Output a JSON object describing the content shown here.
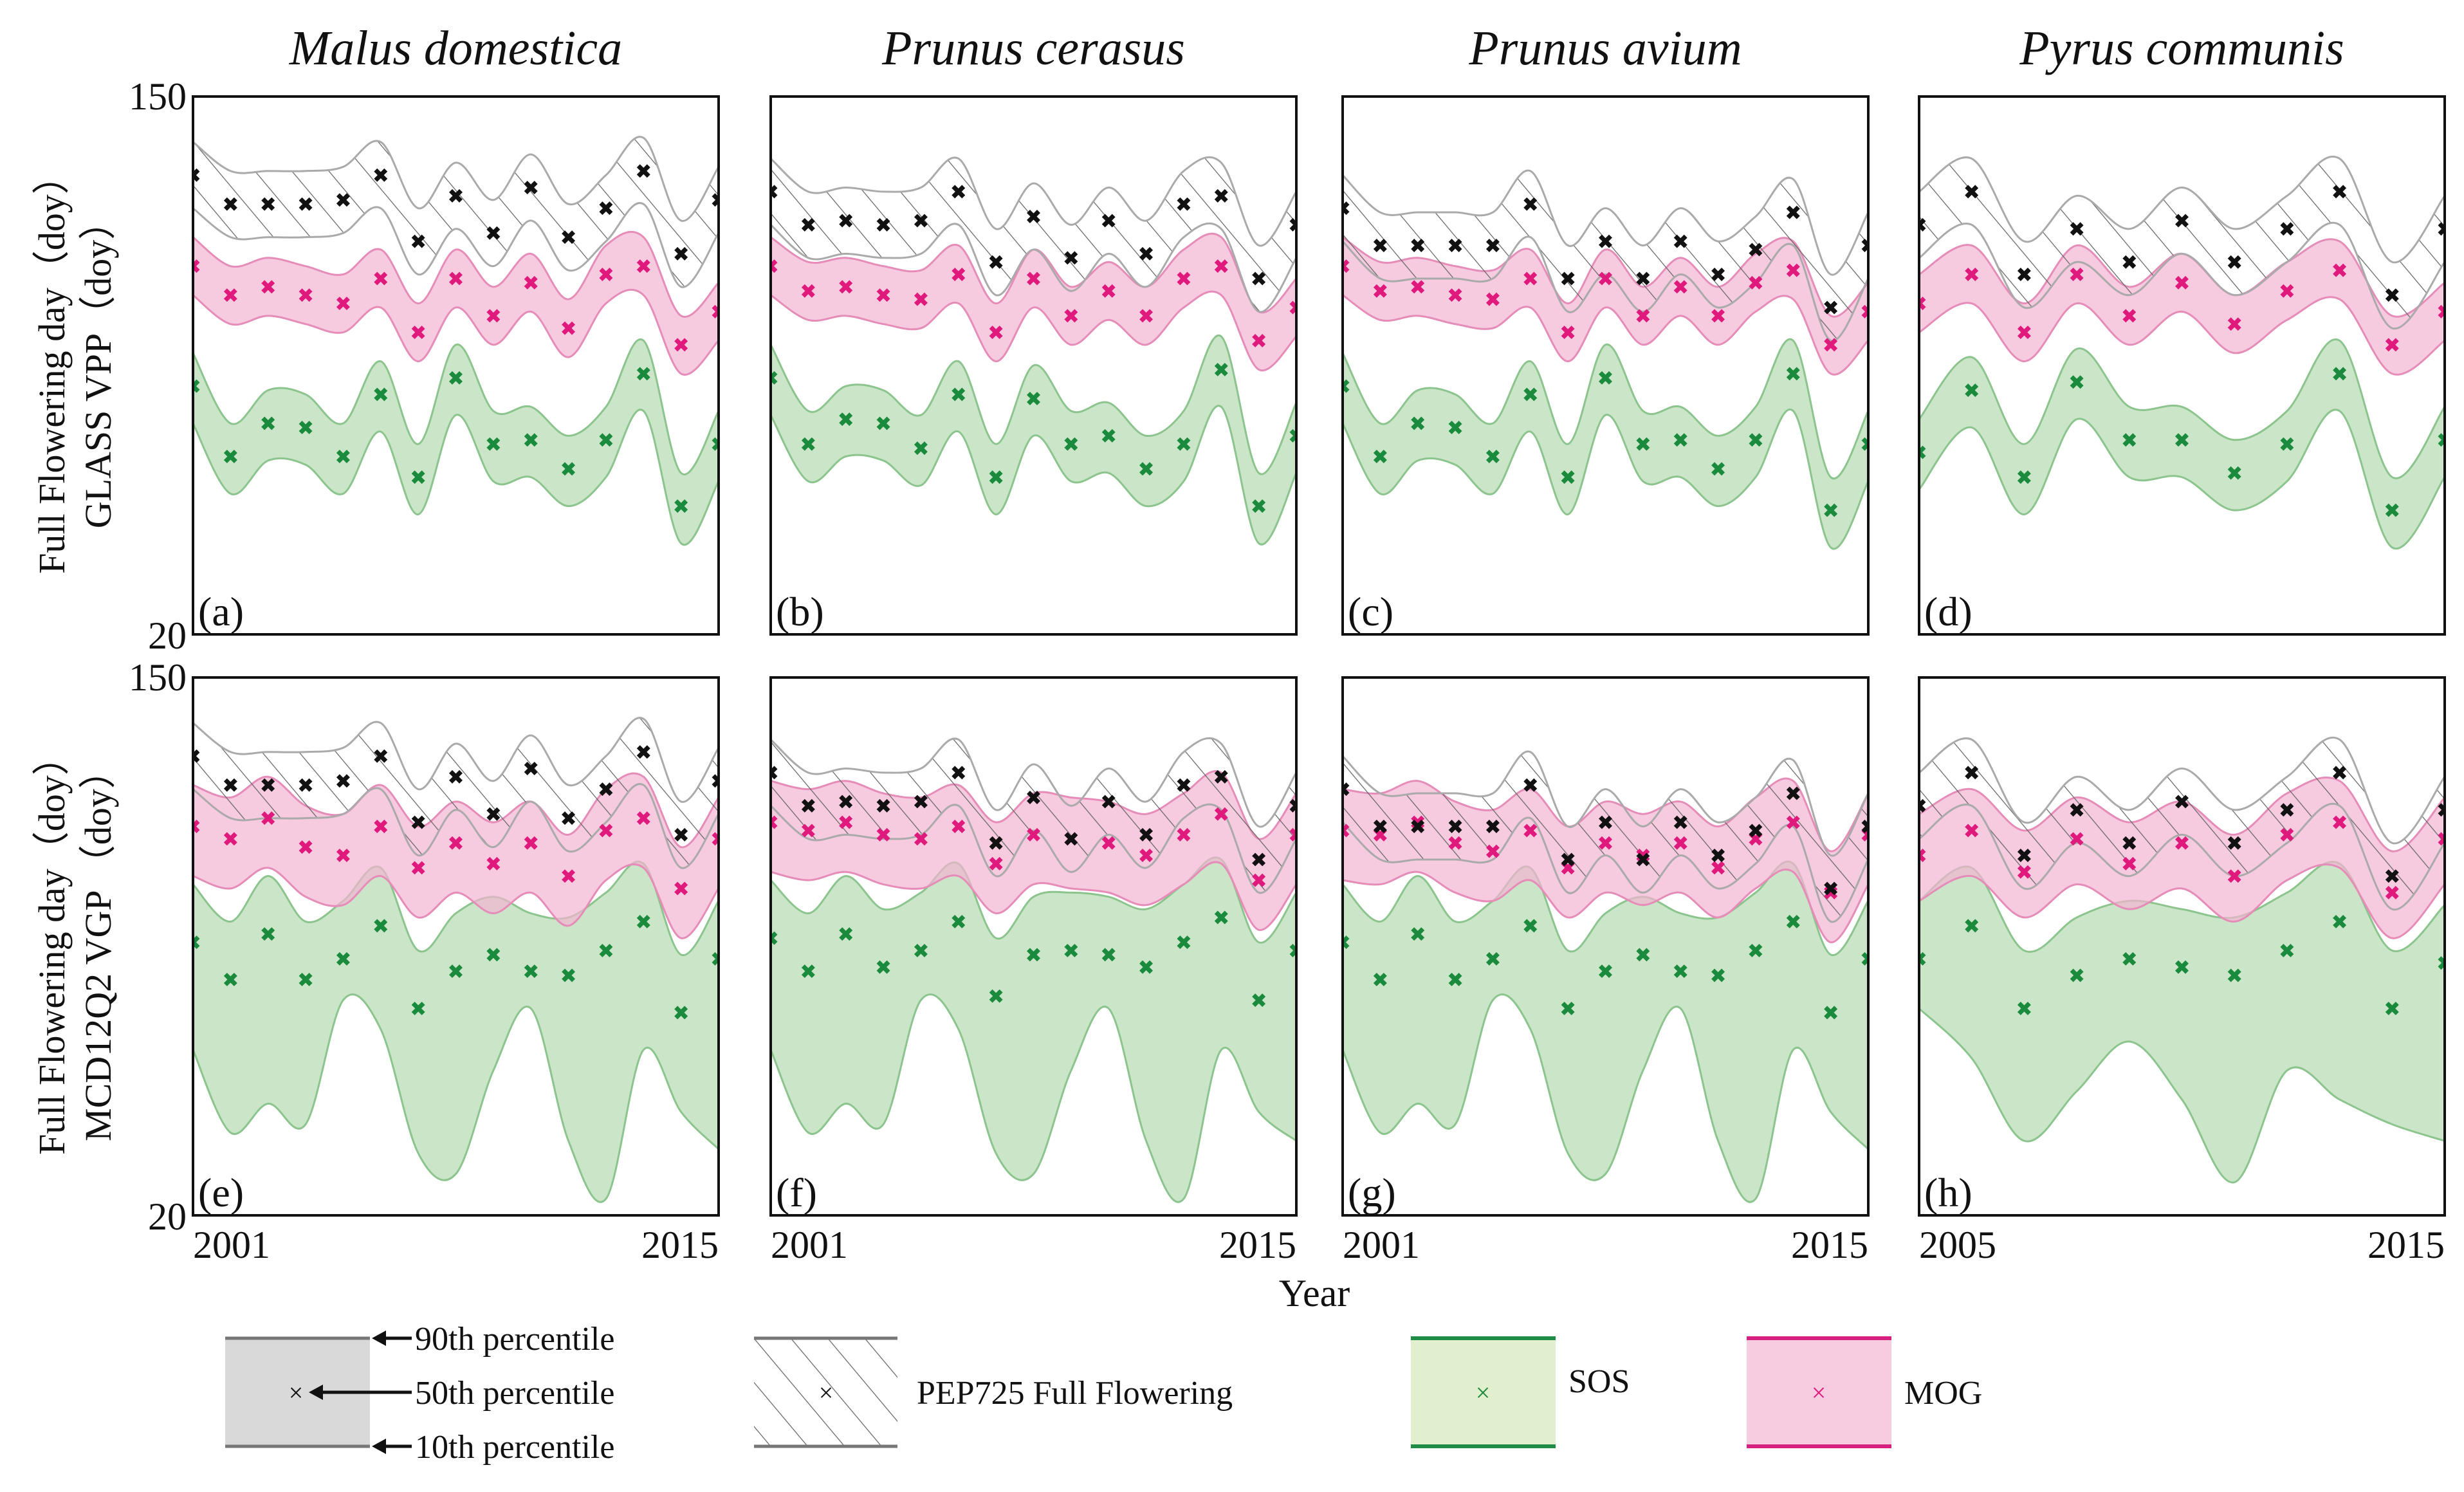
{
  "figure": {
    "column_titles": [
      "Malus domestica",
      "Prunus cerasus",
      "Prunus avium",
      "Pyrus communis"
    ],
    "row_labels": [
      [
        "Full Flowering day（doy）",
        "GLASS VPP（doy）"
      ],
      [
        "Full Flowering day（doy）",
        "MCD12Q2 VGP （doy）"
      ]
    ],
    "y_ticks": [
      "150",
      "20"
    ],
    "xlabel": "Year",
    "legend": {
      "p90": "90th percentile",
      "p50": "50th percentile",
      "p10": "10th percentile",
      "pep": "PEP725  Full Flowering",
      "sos": "SOS",
      "mog": "MOG",
      "marker": "×"
    },
    "colors": {
      "pep": "#111111",
      "mog": "#e0197d",
      "sos": "#1a8a3c",
      "mog_fill": "#f2b3d2",
      "sos_fill": "#b9dcb6"
    }
  },
  "chart_data": [
    {
      "type": "area",
      "panel": "(a)",
      "ylim": [
        20,
        150
      ],
      "x_start": 2001,
      "x_end": 2015,
      "x_ticks": [
        "2001",
        "2015"
      ],
      "series": [
        {
          "name": "PEP725 Full Flowering",
          "median": [
            131,
            124,
            124,
            124,
            125,
            131,
            115,
            126,
            117,
            128,
            116,
            123,
            132,
            112,
            125
          ],
          "spread": [
            8,
            8
          ]
        },
        {
          "name": "MOG",
          "median": [
            109,
            102,
            104,
            102,
            100,
            106,
            93,
            106,
            97,
            105,
            94,
            107,
            109,
            90,
            98
          ],
          "spread": [
            7,
            7
          ]
        },
        {
          "name": "SOS",
          "median": [
            80,
            63,
            71,
            70,
            63,
            78,
            58,
            82,
            66,
            67,
            60,
            67,
            83,
            51,
            66
          ],
          "spread": [
            9,
            8
          ]
        }
      ]
    },
    {
      "type": "area",
      "panel": "(b)",
      "ylim": [
        20,
        150
      ],
      "x_start": 2001,
      "x_end": 2015,
      "x_ticks": [
        "2001",
        "2015"
      ],
      "series": [
        {
          "name": "PEP725 Full Flowering",
          "median": [
            127,
            119,
            120,
            119,
            120,
            127,
            110,
            121,
            111,
            120,
            112,
            124,
            126,
            106,
            119
          ],
          "spread": [
            8,
            8
          ]
        },
        {
          "name": "MOG",
          "median": [
            109,
            103,
            104,
            102,
            101,
            107,
            93,
            106,
            97,
            103,
            97,
            106,
            109,
            91,
            99
          ],
          "spread": [
            7,
            7
          ]
        },
        {
          "name": "SOS",
          "median": [
            82,
            66,
            72,
            71,
            65,
            78,
            58,
            77,
            66,
            68,
            60,
            66,
            84,
            51,
            68
          ],
          "spread": [
            9,
            8
          ]
        }
      ]
    },
    {
      "type": "area",
      "panel": "(c)",
      "ylim": [
        20,
        150
      ],
      "x_start": 2001,
      "x_end": 2015,
      "x_ticks": [
        "2001",
        "2015"
      ],
      "series": [
        {
          "name": "PEP725 Full Flowering",
          "median": [
            123,
            114,
            114,
            114,
            114,
            124,
            106,
            115,
            106,
            115,
            107,
            113,
            122,
            99,
            114
          ],
          "spread": [
            8,
            8
          ]
        },
        {
          "name": "MOG",
          "median": [
            109,
            103,
            104,
            102,
            101,
            106,
            93,
            106,
            97,
            104,
            97,
            105,
            108,
            90,
            98
          ],
          "spread": [
            7,
            7
          ]
        },
        {
          "name": "SOS",
          "median": [
            80,
            63,
            71,
            70,
            63,
            78,
            58,
            82,
            66,
            67,
            60,
            67,
            83,
            50,
            66
          ],
          "spread": [
            9,
            8
          ]
        }
      ]
    },
    {
      "type": "area",
      "panel": "(d)",
      "ylim": [
        20,
        150
      ],
      "x_start": 2005,
      "x_end": 2015,
      "x_ticks": [
        "2005",
        "2015"
      ],
      "series": [
        {
          "name": "PEP725 Full Flowering",
          "median": [
            119,
            127,
            107,
            118,
            110,
            120,
            110,
            118,
            127,
            102,
            118
          ],
          "spread": [
            8,
            8
          ]
        },
        {
          "name": "MOG",
          "median": [
            100,
            107,
            93,
            107,
            97,
            105,
            95,
            103,
            108,
            90,
            98
          ],
          "spread": [
            7,
            7
          ]
        },
        {
          "name": "SOS",
          "median": [
            64,
            79,
            58,
            81,
            67,
            67,
            59,
            66,
            83,
            50,
            67
          ],
          "spread": [
            9,
            8
          ]
        }
      ]
    },
    {
      "type": "area",
      "panel": "(e)",
      "ylim": [
        20,
        150
      ],
      "x_start": 2001,
      "x_end": 2015,
      "x_ticks": [
        "2001",
        "2015"
      ],
      "series": [
        {
          "name": "PEP725 Full Flowering",
          "median": [
            131,
            124,
            124,
            124,
            125,
            131,
            115,
            126,
            117,
            128,
            116,
            123,
            132,
            112,
            125
          ],
          "spread": [
            8,
            8
          ]
        },
        {
          "name": "MOG",
          "median": [
            114,
            111,
            116,
            109,
            107,
            114,
            104,
            110,
            105,
            110,
            102,
            113,
            116,
            99,
            111
          ],
          "spread": [
            12,
            10
          ]
        },
        {
          "name": "SOS",
          "median": [
            86,
            77,
            88,
            77,
            82,
            90,
            70,
            79,
            83,
            79,
            78,
            84,
            91,
            69,
            82
          ],
          "spread": [
            0,
            14
          ],
          "p10": [
            60,
            40,
            47,
            42,
            72,
            65,
            35,
            30,
            55,
            70,
            38,
            24,
            60,
            45,
            36
          ]
        }
      ]
    },
    {
      "type": "area",
      "panel": "(f)",
      "ylim": [
        20,
        150
      ],
      "x_start": 2001,
      "x_end": 2015,
      "x_ticks": [
        "2001",
        "2015"
      ],
      "series": [
        {
          "name": "PEP725 Full Flowering",
          "median": [
            127,
            119,
            120,
            119,
            120,
            127,
            110,
            121,
            111,
            120,
            112,
            124,
            126,
            106,
            119
          ],
          "spread": [
            8,
            8
          ]
        },
        {
          "name": "MOG",
          "median": [
            115,
            113,
            115,
            112,
            111,
            114,
            105,
            112,
            111,
            110,
            107,
            112,
            117,
            101,
            112
          ],
          "spread": [
            12,
            10
          ]
        },
        {
          "name": "SOS",
          "median": [
            87,
            79,
            88,
            80,
            84,
            91,
            73,
            83,
            84,
            83,
            80,
            86,
            92,
            72,
            84
          ],
          "spread": [
            0,
            14
          ],
          "p10": [
            60,
            40,
            47,
            42,
            72,
            65,
            35,
            30,
            55,
            70,
            38,
            24,
            60,
            45,
            38
          ]
        }
      ]
    },
    {
      "type": "area",
      "panel": "(g)",
      "ylim": [
        20,
        150
      ],
      "x_start": 2001,
      "x_end": 2015,
      "x_ticks": [
        "2001",
        "2015"
      ],
      "series": [
        {
          "name": "PEP725 Full Flowering",
          "median": [
            123,
            114,
            114,
            114,
            114,
            124,
            106,
            115,
            106,
            115,
            107,
            113,
            122,
            99,
            114
          ],
          "spread": [
            8,
            8
          ]
        },
        {
          "name": "MOG",
          "median": [
            113,
            112,
            115,
            110,
            108,
            113,
            104,
            110,
            107,
            110,
            104,
            111,
            115,
            98,
            112
          ],
          "spread": [
            12,
            10
          ]
        },
        {
          "name": "SOS",
          "median": [
            86,
            77,
            88,
            77,
            82,
            90,
            70,
            79,
            83,
            79,
            78,
            84,
            91,
            69,
            82
          ],
          "spread": [
            0,
            14
          ],
          "p10": [
            60,
            40,
            47,
            42,
            72,
            65,
            35,
            30,
            55,
            70,
            38,
            24,
            60,
            45,
            36
          ]
        }
      ]
    },
    {
      "type": "area",
      "panel": "(h)",
      "ylim": [
        20,
        150
      ],
      "x_start": 2005,
      "x_end": 2015,
      "x_ticks": [
        "2005",
        "2015"
      ],
      "series": [
        {
          "name": "PEP725 Full Flowering",
          "median": [
            119,
            127,
            107,
            118,
            110,
            120,
            110,
            118,
            127,
            102,
            118
          ],
          "spread": [
            8,
            8
          ]
        },
        {
          "name": "MOG",
          "median": [
            107,
            113,
            103,
            111,
            105,
            110,
            102,
            112,
            115,
            98,
            111
          ],
          "spread": [
            11,
            10
          ]
        },
        {
          "name": "SOS",
          "median": [
            82,
            90,
            70,
            78,
            82,
            80,
            78,
            84,
            91,
            70,
            81
          ],
          "spread": [
            0,
            14
          ],
          "p10": [
            70,
            58,
            38,
            50,
            62,
            48,
            28,
            55,
            48,
            42,
            38
          ]
        }
      ]
    }
  ]
}
